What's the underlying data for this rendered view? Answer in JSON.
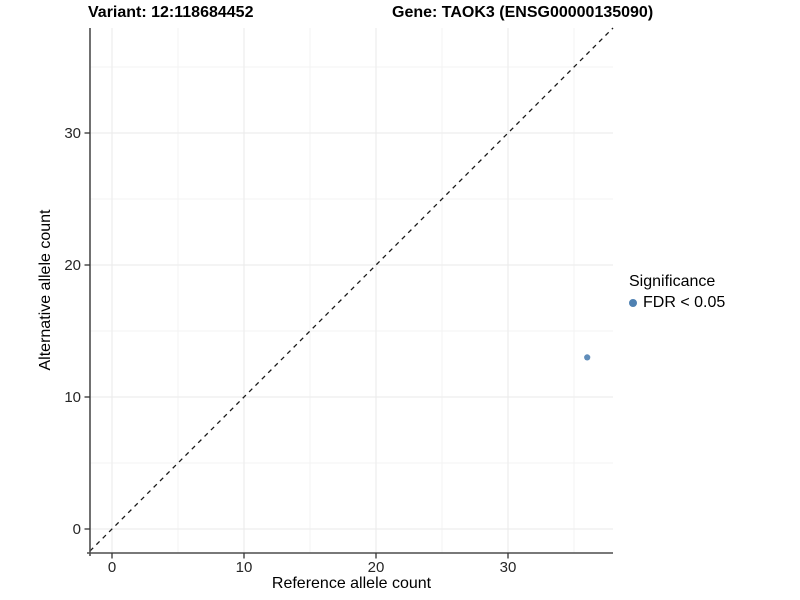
{
  "chart_data": {
    "type": "scatter",
    "title_left": "Variant: 12:118684452",
    "title_right": "Gene: TAOK3 (ENSG00000135090)",
    "xlabel": "Reference allele count",
    "ylabel": "Alternative allele count",
    "x_ticks": [
      0,
      10,
      20,
      30
    ],
    "y_ticks": [
      0,
      10,
      20,
      30
    ],
    "xlim": [
      -1.8,
      38
    ],
    "ylim": [
      -1.8,
      38
    ],
    "minor_grid_step": 5,
    "grid": "major+minor",
    "points": [
      {
        "x": 36,
        "y": 13,
        "series": "FDR < 0.05"
      }
    ],
    "abline": {
      "slope": 1,
      "intercept": 0,
      "style": "dashed"
    },
    "legend": {
      "title": "Significance",
      "position": "right",
      "entries": [
        {
          "label": "FDR < 0.05",
          "color": "#4f81b2"
        }
      ]
    },
    "colors": {
      "point": "#4f81b2",
      "grid_major": "#eaeaea",
      "grid_minor": "#f3f3f3",
      "axis": "#4d4d4d",
      "tick": "#333333",
      "tick_text": "#262626",
      "abline": "#1a1a1a"
    }
  }
}
